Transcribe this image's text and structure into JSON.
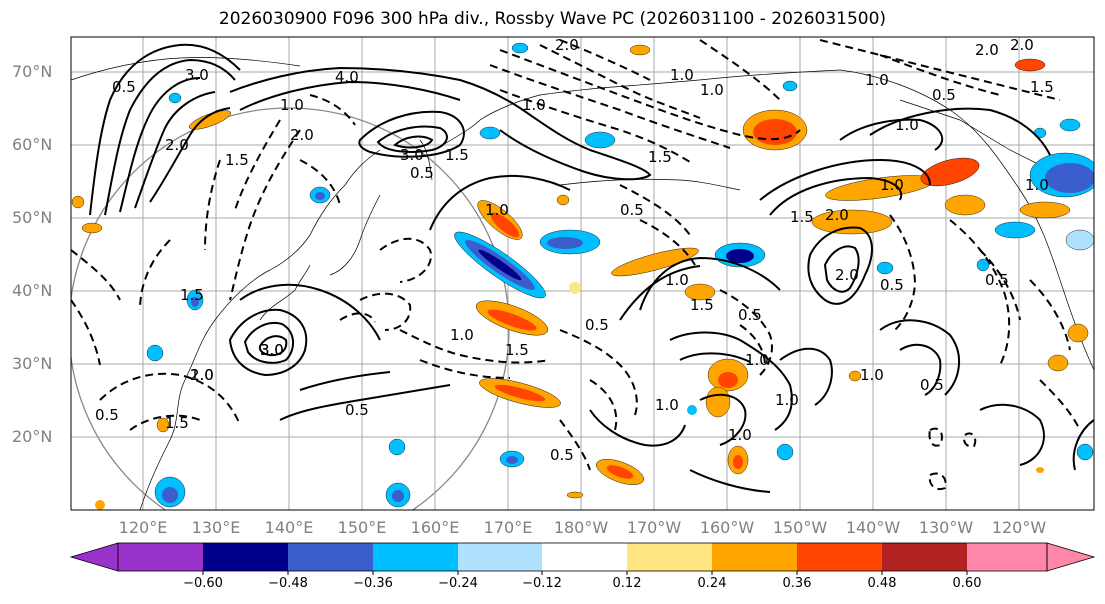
{
  "title": "2026030900 F096 300 hPa div., Rossby Wave PC (2026031100 - 2026031500)",
  "latitude_labels": [
    "70°N",
    "60°N",
    "50°N",
    "40°N",
    "30°N",
    "20°N"
  ],
  "longitude_labels": [
    "120°E",
    "130°E",
    "140°E",
    "150°E",
    "160°E",
    "170°E",
    "180°W",
    "170°W",
    "160°W",
    "150°W",
    "140°W",
    "130°W",
    "120°W"
  ],
  "colorbar": {
    "ticks": [
      "−0.60",
      "−0.48",
      "−0.36",
      "−0.24",
      "−0.12",
      "0.12",
      "0.24",
      "0.36",
      "0.48",
      "0.60"
    ],
    "colors": [
      "#9933cc",
      "#00008b",
      "#3a5fcd",
      "#00bfff",
      "#b0e2ff",
      "#ffffff",
      "#ffe680",
      "#ffa500",
      "#ff4500",
      "#b22222",
      "#ff88aa"
    ]
  },
  "contour_labels": [
    "0.5",
    "3.0",
    "4.0",
    "1.0",
    "2.0",
    "1.5",
    "0.5",
    "2.0",
    "1.0",
    "1.5",
    "2.0",
    "1.0",
    "1.0",
    "2.0",
    "3.0",
    "1.0",
    "1.5",
    "0.5",
    "1.5",
    "3.0",
    "1.0",
    "1.0",
    "1.5",
    "0.5",
    "3.0",
    "0.5",
    "0.5",
    "0.5",
    "0.5",
    "1.5",
    "1.5",
    "1.0",
    "1.0",
    "0.5",
    "1.0",
    "1.0",
    "1.0",
    "1.0",
    "2.0",
    "0.5",
    "1.0",
    "1.5",
    "2.0",
    "0.5",
    "2.0",
    "0.5",
    "1.0",
    "2.0",
    "1.0",
    "1.5",
    "1.0"
  ]
}
